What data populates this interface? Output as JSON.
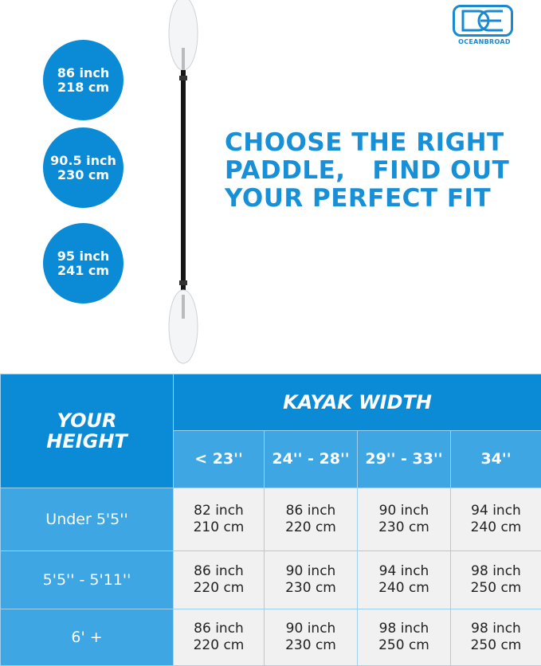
{
  "brand": {
    "name": "OCEANBROAD",
    "color": "#1a8ad0"
  },
  "lengths": [
    {
      "inch": "86 inch",
      "cm": "218 cm"
    },
    {
      "inch": "90.5 inch",
      "cm": "230 cm"
    },
    {
      "inch": "95 inch",
      "cm": "241 cm"
    }
  ],
  "headline": [
    "CHOOSE THE RIGHT",
    "PADDLE,   FIND OUT",
    "YOUR PERFECT FIT"
  ],
  "table": {
    "height_header": [
      "YOUR",
      "HEIGHT"
    ],
    "width_header": "KAYAK WIDTH",
    "columns": [
      "< 23''",
      "24'' - 28''",
      "29'' - 33''",
      "34''"
    ],
    "rows": [
      {
        "label": "Under 5'5''",
        "cells": [
          [
            "82 inch",
            "210 cm"
          ],
          [
            "86 inch",
            "220 cm"
          ],
          [
            "90 inch",
            "230 cm"
          ],
          [
            "94 inch",
            "240 cm"
          ]
        ]
      },
      {
        "label": "5'5'' - 5'11''",
        "cells": [
          [
            "86 inch",
            "220 cm"
          ],
          [
            "90 inch",
            "230 cm"
          ],
          [
            "94 inch",
            "240 cm"
          ],
          [
            "98 inch",
            "250 cm"
          ]
        ]
      },
      {
        "label": "6' +",
        "cells": [
          [
            "86 inch",
            "220 cm"
          ],
          [
            "90 inch",
            "230 cm"
          ],
          [
            "98 inch",
            "250 cm"
          ],
          [
            "98 inch",
            "250 cm"
          ]
        ]
      }
    ]
  },
  "colors": {
    "primary": "#0b8ad6",
    "secondary": "#3ea6e2",
    "cell": "#f1f1f1"
  }
}
